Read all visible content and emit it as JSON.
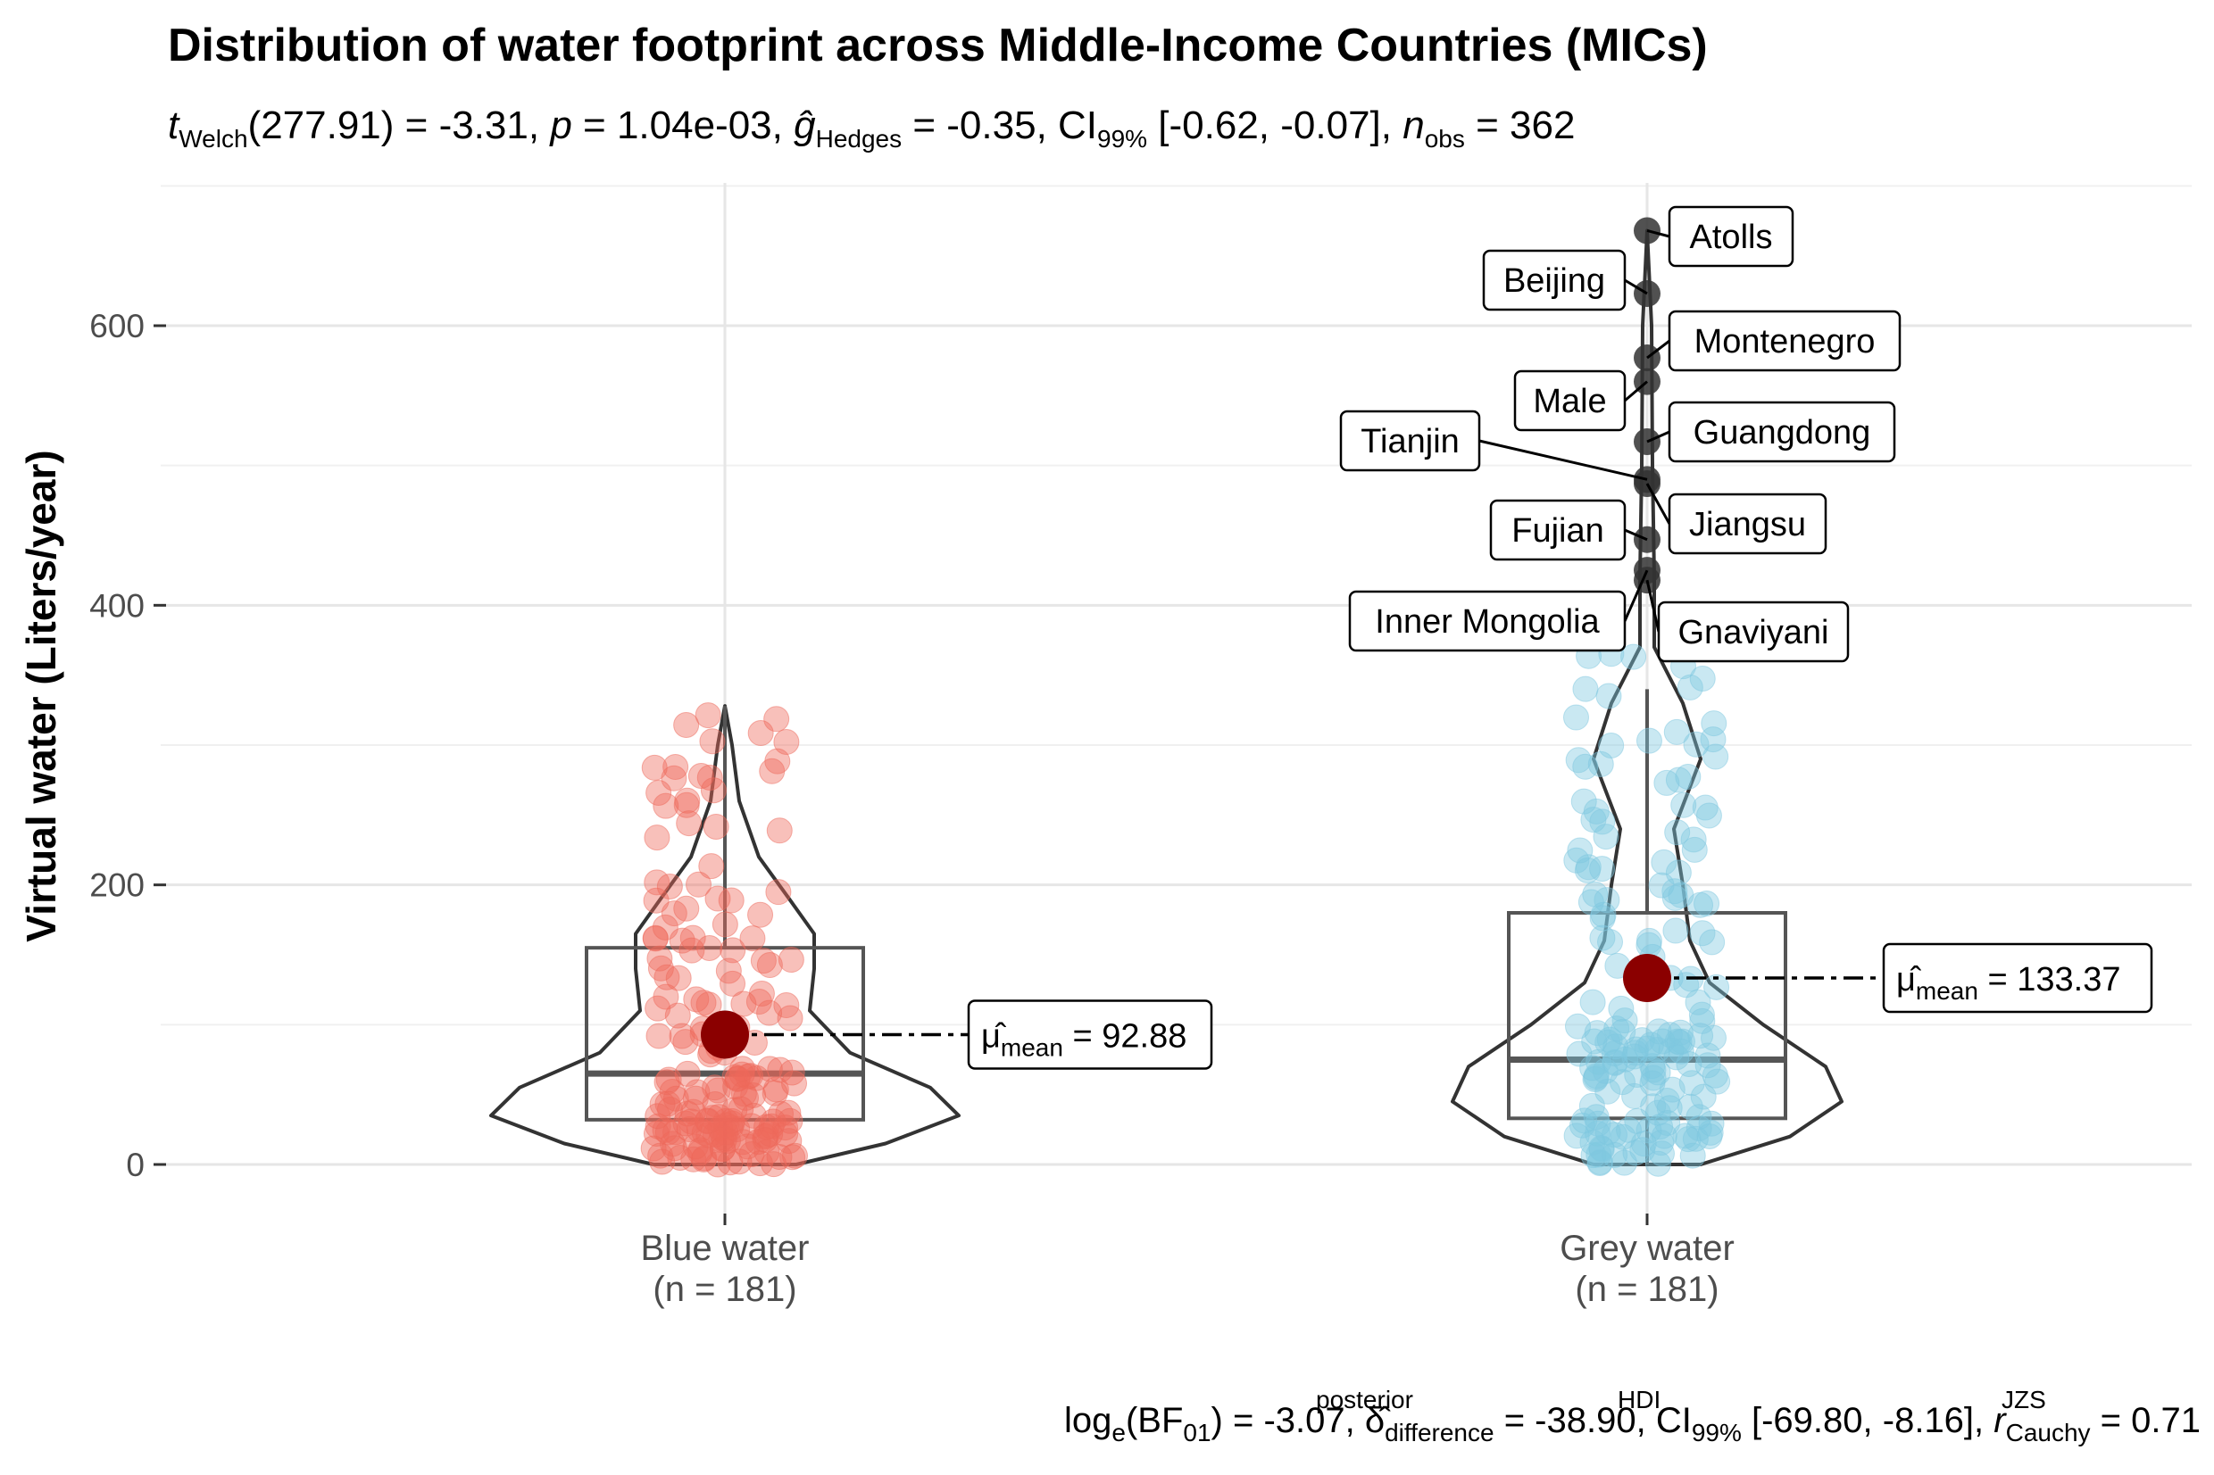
{
  "chart_data": {
    "type": "violin-box-scatter",
    "title": "Distribution of water footprint across Middle-Income Countries (MICs)",
    "subtitle": {
      "statistic": "Welch",
      "df": "277.91",
      "t": "-3.31",
      "p": "1.04e-03",
      "effect_size_label": "Hedges",
      "effect_size": "-0.35",
      "ci_level": "99%",
      "ci": "[-0.62, -0.07]",
      "n_obs": "362"
    },
    "caption": {
      "log_bf01": "-3.07",
      "posterior_difference": "-38.90",
      "ci_level": "HDI",
      "ci_pct": "99%",
      "ci": "[-69.80, -8.16]",
      "r_cauchy_label": "JZS",
      "r_cauchy": "0.71"
    },
    "ylabel": "Virtual water (Liters/year)",
    "xlabel": "",
    "ylim": [
      0,
      700
    ],
    "yticks": [
      0,
      200,
      400,
      600
    ],
    "grid": true,
    "groups": [
      {
        "name": "Blue water",
        "n_label": "(n = 181)",
        "color": "#EE6A5B",
        "box": {
          "q1": 32,
          "median": 65,
          "q3": 155,
          "whisker_low": 0,
          "whisker_high": 328
        },
        "mean": 92.88,
        "mean_label": "92.88",
        "violin_max": 328,
        "outliers": []
      },
      {
        "name": "Grey water",
        "n_label": "(n = 181)",
        "color": "#7FC8DF",
        "box": {
          "q1": 33,
          "median": 75,
          "q3": 180,
          "whisker_low": 0,
          "whisker_high": 340
        },
        "mean": 133.37,
        "mean_label": "133.37",
        "violin_max": 668,
        "outliers": [
          {
            "label": "Atolls",
            "value": 668
          },
          {
            "label": "Beijing",
            "value": 623
          },
          {
            "label": "Montenegro",
            "value": 577
          },
          {
            "label": "Male",
            "value": 560
          },
          {
            "label": "Guangdong",
            "value": 517
          },
          {
            "label": "Tianjin",
            "value": 490
          },
          {
            "label": "Jiangsu",
            "value": 487
          },
          {
            "label": "Fujian",
            "value": 447
          },
          {
            "label": "Inner Mongolia",
            "value": 425
          },
          {
            "label": "Gnaviyani",
            "value": 418
          }
        ]
      }
    ]
  },
  "colors": {
    "violin_outline": "#333333",
    "box_outline": "#555555",
    "mean_point": "#8B0000",
    "outlier_point": "#333333",
    "grid": "#ebebeb"
  }
}
